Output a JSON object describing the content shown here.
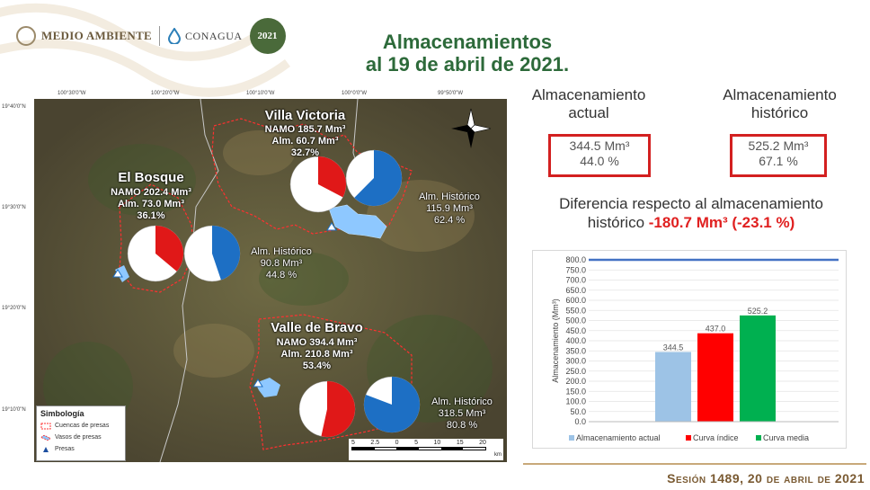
{
  "header": {
    "logo1": "MEDIO AMBIENTE",
    "logo2": "CONAGUA",
    "logo3": "2021"
  },
  "title": {
    "line1": "Almacenamientos",
    "line2": "al  19  de abril de 2021."
  },
  "map": {
    "coords_top": [
      "100°30'0\"W",
      "100°20'0\"W",
      "100°10'0\"W",
      "100°0'0\"W",
      "99°50'0\"W"
    ],
    "coords_left": [
      "19°40'0\"N",
      "19°30'0\"N",
      "19°20'0\"N",
      "19°10'0\"N"
    ],
    "colors": {
      "actual": "#e01818",
      "historico": "#1d6fc4",
      "pie_rest": "#ffffff"
    },
    "dams": [
      {
        "name": "Villa Victoria",
        "namo": "NAMO 185.7 Mm³",
        "alm": "Alm. 60.7 Mm³",
        "pct": "32.7%",
        "pct_value": 32.7,
        "hist_label": "Alm. Histórico",
        "hist_vol": "115.9 Mm³",
        "hist_pct": "62.4 %",
        "hist_value": 62.4
      },
      {
        "name": "El Bosque",
        "namo": "NAMO 202.4 Mm³",
        "alm": "Alm. 73.0 Mm³",
        "pct": "36.1%",
        "pct_value": 36.1,
        "hist_label": "Alm. Histórico",
        "hist_vol": "90.8 Mm³",
        "hist_pct": "44.8 %",
        "hist_value": 44.8
      },
      {
        "name": "Valle de Bravo",
        "namo": "NAMO 394.4 Mm³",
        "alm": "Alm. 210.8 Mm³",
        "pct": "53.4%",
        "pct_value": 53.4,
        "hist_label": "Alm. Histórico",
        "hist_vol": "318.5 Mm³",
        "hist_pct": "80.8 %",
        "hist_value": 80.8
      }
    ],
    "legend": {
      "title": "Simbología",
      "items": [
        "Cuencas de presas",
        "Vasos de presas",
        "Presas"
      ]
    },
    "scale": {
      "labels": [
        "5",
        "2.5",
        "0",
        "5",
        "10",
        "15",
        "20"
      ],
      "unit": "km"
    },
    "north": "N"
  },
  "summary": {
    "actual_head": [
      "Almacenamiento",
      "actual"
    ],
    "actual_vol": "344.5 Mm³",
    "actual_pct": "44.0 %",
    "hist_head": [
      "Almacenamiento",
      "histórico"
    ],
    "hist_vol": "525.2 Mm³",
    "hist_pct": "67.1 %",
    "diff_text": "Diferencia respecto al almacenamiento",
    "diff_text2": "histórico",
    "diff_value": "-180.7 Mm³ (-23.1 %)"
  },
  "chart_data": {
    "type": "bar",
    "categories": [
      "Almacenamiento actual",
      "Curva índice",
      "Curva media"
    ],
    "values": [
      344.5,
      437.0,
      525.2
    ],
    "value_labels": [
      "344.5",
      "437.0",
      "525.2"
    ],
    "colors": [
      "#9dc3e6",
      "#ff0000",
      "#00b050"
    ],
    "ylabel": "Almacenamiento (Mm³)",
    "ylim": [
      0,
      800
    ],
    "yticks": [
      "0.0",
      "50.0",
      "100.0",
      "150.0",
      "200.0",
      "250.0",
      "300.0",
      "350.0",
      "400.0",
      "450.0",
      "500.0",
      "550.0",
      "600.0",
      "650.0",
      "700.0",
      "750.0",
      "800.0"
    ],
    "reference_line": 800,
    "reference_color": "#4472c4",
    "grid": true,
    "legend": "bottom"
  },
  "footer": "Sesión 1489, 20 de abril de 2021"
}
